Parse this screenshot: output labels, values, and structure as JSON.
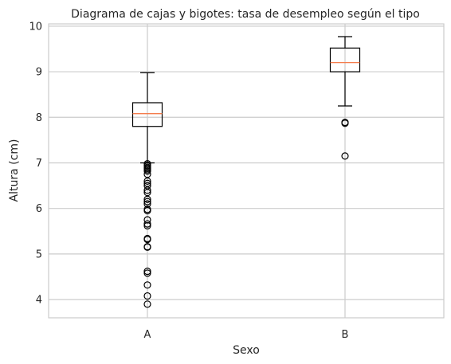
{
  "chart_data": {
    "type": "boxplot",
    "title": "Diagrama de cajas y bigotes: tasa de desempleo según el tipo",
    "xlabel": "Sexo",
    "ylabel": "Altura (cm)",
    "categories": [
      "A",
      "B"
    ],
    "ylim": [
      3.6,
      10.05
    ],
    "yticks": [
      4,
      5,
      6,
      7,
      8,
      9,
      10
    ],
    "grid": true,
    "colors": {
      "box": "#000000",
      "median": "#f47c4c",
      "grid": "#cccccc",
      "axes": "#cccccc"
    },
    "boxes": [
      {
        "category": "A",
        "whisker_low": 7.0,
        "q1": 7.8,
        "median": 8.08,
        "q3": 8.32,
        "whisker_high": 8.98,
        "outliers": [
          3.9,
          4.08,
          4.32,
          4.58,
          4.62,
          5.15,
          5.16,
          5.32,
          5.34,
          5.62,
          5.66,
          5.75,
          5.95,
          5.98,
          6.1,
          6.15,
          6.2,
          6.35,
          6.4,
          6.5,
          6.55,
          6.6,
          6.75,
          6.82,
          6.85,
          6.88,
          6.9,
          6.93,
          6.95,
          6.98
        ]
      },
      {
        "category": "B",
        "whisker_low": 8.25,
        "q1": 9.0,
        "median": 9.2,
        "q3": 9.52,
        "whisker_high": 9.77,
        "outliers": [
          7.15,
          7.87,
          7.89
        ]
      }
    ]
  }
}
